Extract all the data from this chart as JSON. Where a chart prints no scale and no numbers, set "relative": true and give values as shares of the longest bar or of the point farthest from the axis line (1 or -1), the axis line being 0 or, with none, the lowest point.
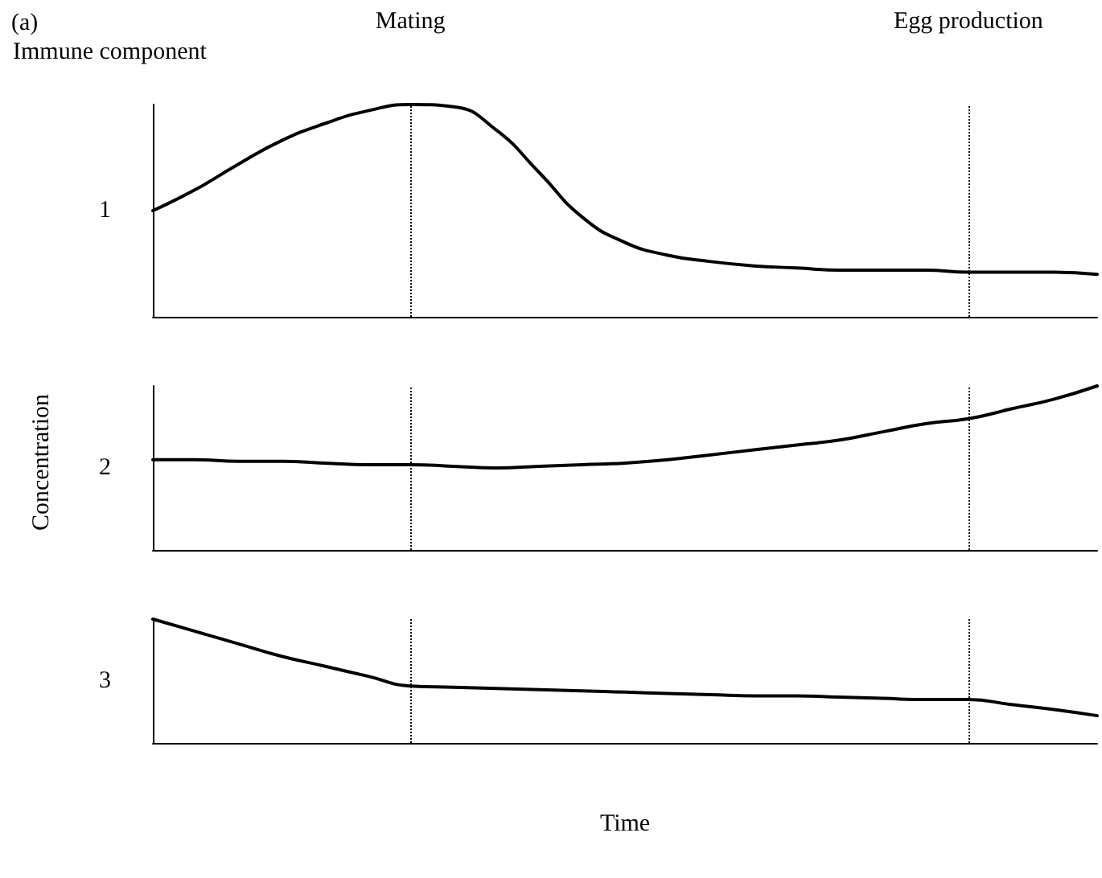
{
  "chart_data": [
    {
      "type": "line",
      "title": "(a)",
      "annotations": [
        "Immune component",
        "Mating",
        "Egg production"
      ],
      "ylabel": "1",
      "relative": true,
      "marker": "none",
      "line_style": "solid",
      "categories": [
        null,
        null,
        null,
        null,
        null,
        null,
        null,
        null,
        null,
        null,
        null,
        null,
        null,
        null,
        null,
        null,
        null,
        null,
        null,
        null,
        null,
        null,
        null
      ],
      "series": [
        {
          "color": "#000000",
          "values": [
            0.5,
            0.6,
            0.72,
            0.83,
            0.91,
            0.97,
            1.0,
            0.99,
            0.88,
            0.68,
            0.47,
            0.35,
            0.29,
            0.26,
            0.24,
            0.23,
            0.22,
            0.22,
            0.22,
            0.21,
            0.21,
            0.21,
            0.2
          ]
        }
      ]
    },
    {
      "type": "line",
      "annotations": [
        "Concentration"
      ],
      "ylabel": "2",
      "relative": true,
      "marker": "none",
      "line_style": "solid",
      "categories": [
        null,
        null,
        null,
        null,
        null,
        null,
        null,
        null,
        null,
        null,
        null,
        null,
        null,
        null,
        null,
        null,
        null,
        null,
        null,
        null,
        null,
        null,
        null
      ],
      "series": [
        {
          "color": "#000000",
          "values": [
            0.55,
            0.55,
            0.54,
            0.54,
            0.53,
            0.52,
            0.52,
            0.51,
            0.5,
            0.51,
            0.52,
            0.53,
            0.55,
            0.58,
            0.61,
            0.64,
            0.67,
            0.72,
            0.77,
            0.8,
            0.86,
            0.92,
            1.0
          ]
        }
      ]
    },
    {
      "type": "line",
      "xlabel": "Time",
      "ylabel": "3",
      "relative": true,
      "marker": "none",
      "line_style": "solid",
      "categories": [
        null,
        null,
        null,
        null,
        null,
        null,
        null,
        null,
        null,
        null,
        null,
        null,
        null,
        null,
        null,
        null,
        null,
        null,
        null,
        null,
        null,
        null,
        null
      ],
      "series": [
        {
          "color": "#000000",
          "values": [
            1.0,
            0.9,
            0.8,
            0.7,
            0.62,
            0.54,
            0.46,
            0.45,
            0.44,
            0.43,
            0.42,
            0.41,
            0.4,
            0.39,
            0.38,
            0.38,
            0.37,
            0.36,
            0.35,
            0.35,
            0.31,
            0.27,
            0.22
          ]
        }
      ]
    }
  ]
}
